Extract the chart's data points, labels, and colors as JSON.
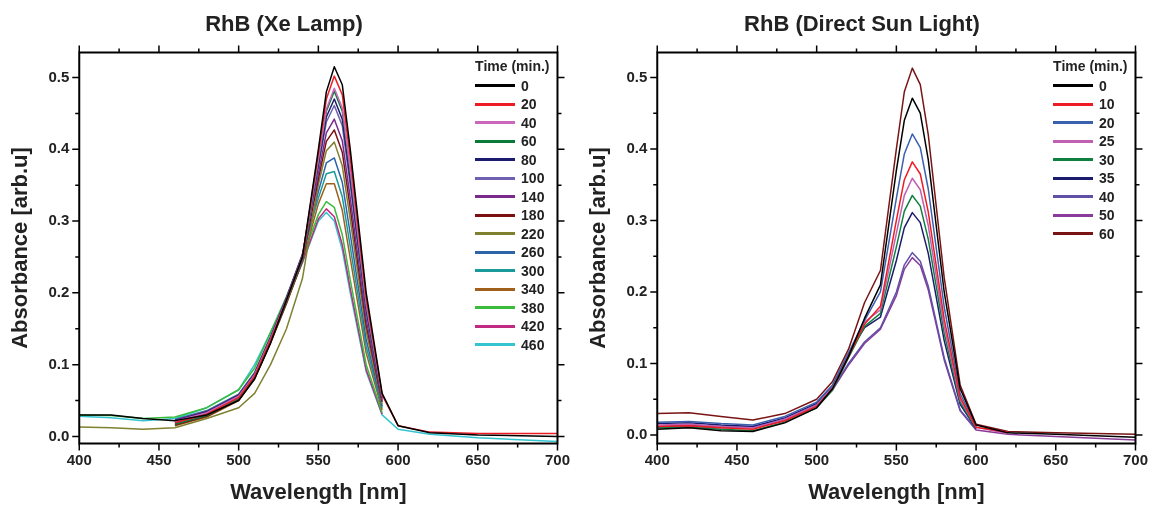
{
  "chart_data": [
    {
      "type": "line",
      "title": "RhB (Xe Lamp)",
      "xlabel": "Wavelength [nm]",
      "ylabel": "Absorbance [arb.u]",
      "legend_title": "Time (min.)",
      "legend": "top right",
      "x": [
        400,
        420,
        440,
        460,
        480,
        500,
        510,
        520,
        530,
        540,
        550,
        555,
        560,
        565,
        570,
        580,
        590,
        600,
        620,
        650,
        700
      ],
      "xlim": [
        400,
        700
      ],
      "xticks": [
        400,
        {
          "value": 425,
          "label": null
        },
        450,
        {
          "value": 475,
          "label": null
        },
        500,
        {
          "value": 525,
          "label": null
        },
        550,
        {
          "value": 575,
          "label": null
        },
        600,
        {
          "value": 625,
          "label": null
        },
        650,
        {
          "value": 675,
          "label": null
        },
        700
      ],
      "ylim": [
        -0.01,
        0.535
      ],
      "yticks": [
        {
          "value": 0,
          "label": "0.0"
        },
        {
          "value": 0.05,
          "label": null
        },
        0.1,
        {
          "value": 0.15,
          "label": null
        },
        0.2,
        {
          "value": 0.25,
          "label": null
        },
        0.3,
        {
          "value": 0.35,
          "label": null
        },
        0.4,
        {
          "value": 0.45,
          "label": null
        },
        0.5
      ],
      "series": [
        {
          "name": "0",
          "color": "#000000",
          "values": [
            0.03,
            0.03,
            0.025,
            0.022,
            0.03,
            0.05,
            0.08,
            0.13,
            0.19,
            0.25,
            0.4,
            0.48,
            0.515,
            0.49,
            0.4,
            0.2,
            0.06,
            0.015,
            0.005,
            0.002,
            0.0
          ]
        },
        {
          "name": "20",
          "color": "#ed1c24",
          "values": [
            null,
            null,
            null,
            0.019,
            0.031,
            0.054,
            0.084,
            0.134,
            0.189,
            0.25,
            0.394,
            0.47,
            0.502,
            0.476,
            0.388,
            0.193,
            0.058,
            0.015,
            0.006,
            0.004,
            0.004
          ]
        },
        {
          "name": "40",
          "color": "#cc66bb",
          "values": [
            null,
            null,
            null,
            0.021,
            0.033,
            0.056,
            0.086,
            0.136,
            0.191,
            0.251,
            0.386,
            0.456,
            0.485,
            0.458,
            0.372,
            0.185,
            0.056,
            null,
            null,
            null,
            null
          ]
        },
        {
          "name": "60",
          "color": "#0a7a3a",
          "values": [
            null,
            null,
            null,
            0.017,
            0.029,
            0.052,
            0.082,
            0.132,
            0.187,
            0.247,
            0.384,
            0.453,
            0.481,
            0.453,
            0.368,
            0.182,
            0.055,
            null,
            null,
            null,
            null
          ]
        },
        {
          "name": "80",
          "color": "#1c1c6e",
          "values": [
            null,
            null,
            null,
            0.022,
            0.034,
            0.057,
            0.087,
            0.137,
            0.192,
            0.252,
            0.379,
            0.445,
            0.47,
            0.442,
            0.358,
            0.177,
            0.054,
            null,
            null,
            null,
            null
          ]
        },
        {
          "name": "100",
          "color": "#7060b0",
          "values": [
            null,
            null,
            null,
            0.018,
            0.03,
            0.053,
            0.083,
            0.133,
            0.188,
            0.246,
            0.375,
            0.438,
            0.461,
            0.433,
            0.35,
            0.173,
            0.053,
            null,
            null,
            null,
            null
          ]
        },
        {
          "name": "140",
          "color": "#7a2a8a",
          "values": [
            null,
            null,
            null,
            0.023,
            0.035,
            0.058,
            0.088,
            0.138,
            0.193,
            0.253,
            0.366,
            0.423,
            0.442,
            0.412,
            0.332,
            0.163,
            0.05,
            null,
            null,
            null,
            null
          ]
        },
        {
          "name": "180",
          "color": "#7a1010",
          "values": [
            null,
            null,
            null,
            0.016,
            0.028,
            0.051,
            0.081,
            0.131,
            0.186,
            0.245,
            0.359,
            0.411,
            0.427,
            0.396,
            0.318,
            0.155,
            0.048,
            null,
            null,
            null,
            null
          ]
        },
        {
          "name": "220",
          "color": "#7f8030",
          "values": [
            0.013,
            0.012,
            0.01,
            0.012,
            0.025,
            0.04,
            0.06,
            0.1,
            0.15,
            0.22,
            0.351,
            0.398,
            0.41,
            0.377,
            0.302,
            0.146,
            0.045,
            null,
            null,
            null,
            null
          ]
        },
        {
          "name": "260",
          "color": "#2e64a8",
          "values": [
            null,
            null,
            null,
            0.02,
            0.032,
            0.055,
            0.085,
            0.135,
            0.19,
            0.248,
            0.341,
            0.381,
            0.388,
            0.354,
            0.282,
            0.135,
            0.042,
            null,
            null,
            null,
            null
          ]
        },
        {
          "name": "300",
          "color": "#1a9a9a",
          "values": [
            null,
            null,
            null,
            0.024,
            0.036,
            0.059,
            0.089,
            0.139,
            0.194,
            0.254,
            0.332,
            0.366,
            0.369,
            0.334,
            0.264,
            0.125,
            0.04,
            null,
            null,
            null,
            null
          ]
        },
        {
          "name": "340",
          "color": "#a0601c",
          "values": [
            null,
            null,
            null,
            0.015,
            0.027,
            0.05,
            0.08,
            0.13,
            0.185,
            0.244,
            0.324,
            0.352,
            0.352,
            0.315,
            0.248,
            0.116,
            0.037,
            null,
            null,
            null,
            null
          ]
        },
        {
          "name": "380",
          "color": "#3cbb3c",
          "values": [
            0.03,
            0.029,
            0.025,
            0.027,
            0.04,
            0.065,
            0.095,
            0.145,
            0.195,
            0.249,
            0.309,
            0.327,
            0.319,
            0.281,
            0.218,
            0.1,
            0.033,
            null,
            null,
            null,
            null
          ]
        },
        {
          "name": "420",
          "color": "#c02a80",
          "values": [
            null,
            null,
            null,
            0.021,
            0.034,
            0.058,
            0.088,
            0.138,
            0.188,
            0.243,
            0.303,
            0.317,
            0.306,
            0.267,
            0.206,
            0.093,
            0.031,
            null,
            null,
            null,
            null
          ]
        },
        {
          "name": "460",
          "color": "#33c4d0",
          "values": [
            0.028,
            0.026,
            0.022,
            0.025,
            0.04,
            0.065,
            0.1,
            0.145,
            0.19,
            0.242,
            0.3,
            0.312,
            0.3,
            0.26,
            0.2,
            0.09,
            0.03,
            0.01,
            0.003,
            -0.002,
            -0.007
          ]
        }
      ]
    },
    {
      "type": "line",
      "title": "RhB (Direct Sun Light)",
      "xlabel": "Wavelength [nm]",
      "ylabel": "Absorbance [arb.u]",
      "legend_title": "Time (min.)",
      "legend": "top right",
      "x": [
        400,
        420,
        440,
        460,
        480,
        500,
        510,
        520,
        530,
        540,
        550,
        555,
        560,
        565,
        570,
        580,
        590,
        600,
        620,
        650,
        700
      ],
      "xlim": [
        400,
        700
      ],
      "xticks": [
        400,
        {
          "value": 425,
          "label": null
        },
        450,
        {
          "value": 475,
          "label": null
        },
        500,
        {
          "value": 525,
          "label": null
        },
        550,
        {
          "value": 575,
          "label": null
        },
        600,
        {
          "value": 625,
          "label": null
        },
        650,
        {
          "value": 675,
          "label": null
        },
        700
      ],
      "ylim": [
        -0.012,
        0.535
      ],
      "yticks": [
        {
          "value": 0,
          "label": "0.0"
        },
        {
          "value": 0.05,
          "label": null
        },
        0.1,
        {
          "value": 0.15,
          "label": null
        },
        0.2,
        {
          "value": 0.25,
          "label": null
        },
        0.3,
        {
          "value": 0.35,
          "label": null
        },
        0.4,
        {
          "value": 0.45,
          "label": null
        },
        0.5
      ],
      "series": [
        {
          "name": "0",
          "color": "#000000",
          "values": [
            0.008,
            0.01,
            0.006,
            0.005,
            0.017,
            0.038,
            0.065,
            0.11,
            0.163,
            0.21,
            0.37,
            0.44,
            0.471,
            0.45,
            0.385,
            0.2,
            0.065,
            0.014,
            0.003,
            0.001,
            -0.003
          ]
        },
        {
          "name": "10",
          "color": "#ed1c24",
          "values": [
            0.012,
            0.013,
            0.01,
            0.008,
            0.02,
            0.04,
            0.065,
            0.11,
            0.155,
            0.18,
            0.3,
            0.357,
            0.382,
            0.365,
            0.312,
            0.162,
            0.053,
            0.011,
            0.004,
            null,
            null
          ]
        },
        {
          "name": "20",
          "color": "#3a60b0",
          "values": [
            0.018,
            0.019,
            0.016,
            0.014,
            0.026,
            0.046,
            0.07,
            0.115,
            0.16,
            0.2,
            0.331,
            0.393,
            0.421,
            0.402,
            0.344,
            0.179,
            0.058,
            0.013,
            null,
            null,
            null
          ]
        },
        {
          "name": "25",
          "color": "#c060b0",
          "values": [
            0.014,
            0.015,
            0.012,
            0.01,
            0.022,
            0.042,
            0.067,
            0.112,
            0.158,
            0.175,
            0.282,
            0.335,
            0.359,
            0.343,
            0.293,
            0.152,
            0.05,
            0.011,
            0.002,
            null,
            null
          ]
        },
        {
          "name": "30",
          "color": "#108040",
          "values": [
            0.01,
            0.011,
            0.008,
            0.006,
            0.018,
            0.038,
            0.063,
            0.108,
            0.152,
            0.17,
            0.263,
            0.313,
            0.335,
            0.32,
            0.274,
            0.142,
            0.046,
            0.01,
            null,
            null,
            null
          ]
        },
        {
          "name": "35",
          "color": "#1c1c6e",
          "values": [
            0.016,
            0.017,
            0.014,
            0.012,
            0.024,
            0.044,
            0.069,
            0.114,
            0.15,
            0.165,
            0.244,
            0.29,
            0.311,
            0.297,
            0.254,
            0.132,
            0.043,
            0.009,
            null,
            null,
            null
          ]
        },
        {
          "name": "40",
          "color": "#6050a8",
          "values": [
            0.012,
            0.014,
            0.012,
            0.012,
            0.022,
            0.042,
            0.065,
            0.1,
            0.13,
            0.15,
            0.2,
            0.238,
            0.255,
            0.243,
            0.208,
            0.108,
            0.035,
            0.008,
            null,
            null,
            null
          ]
        },
        {
          "name": "50",
          "color": "#8a3a98",
          "values": [
            0.01,
            0.012,
            0.01,
            0.01,
            0.02,
            0.04,
            0.063,
            0.098,
            0.128,
            0.148,
            0.195,
            0.232,
            0.248,
            0.237,
            0.203,
            0.105,
            0.034,
            0.007,
            0.001,
            -0.002,
            -0.007
          ]
        },
        {
          "name": "60",
          "color": "#7a1414",
          "values": [
            0.03,
            0.031,
            0.026,
            0.021,
            0.03,
            0.05,
            0.075,
            0.12,
            0.185,
            0.23,
            0.4,
            0.48,
            0.513,
            0.49,
            0.42,
            0.22,
            0.07,
            0.015,
            0.005,
            0.003,
            0.001
          ]
        }
      ]
    }
  ]
}
